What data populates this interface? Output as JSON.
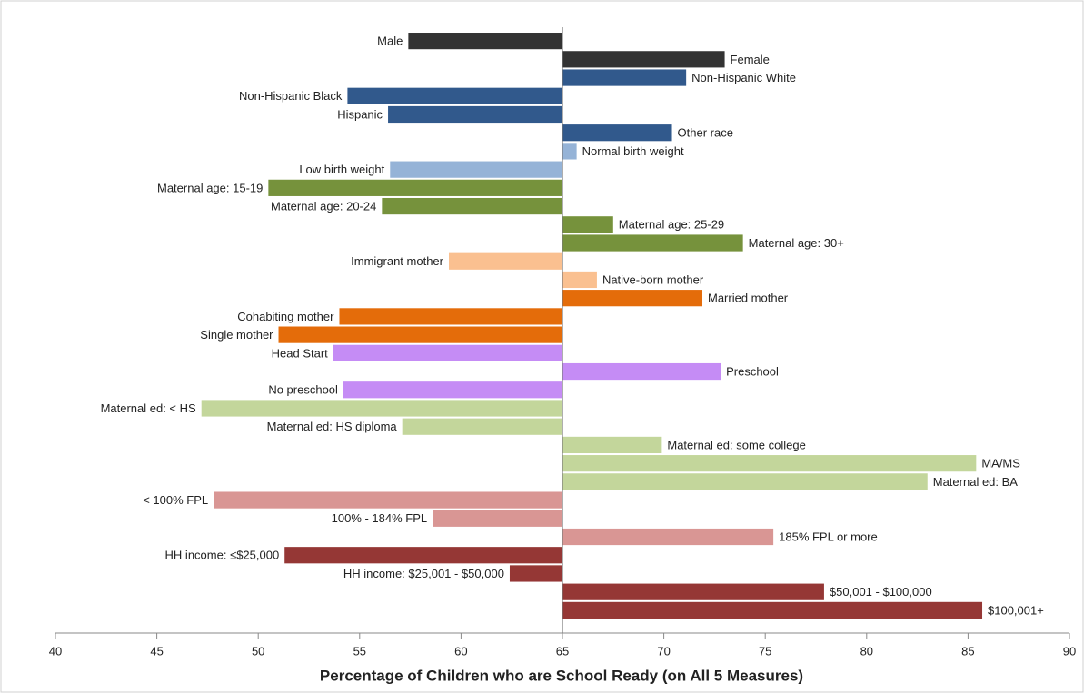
{
  "chart_data": {
    "type": "bar",
    "orientation": "horizontal",
    "xlabel": "Percentage of Children who are School Ready (on All 5 Measures)",
    "baseline": 65,
    "xlim": [
      40,
      90
    ],
    "xticks": [
      40,
      45,
      50,
      55,
      60,
      65,
      70,
      75,
      80,
      85,
      90
    ],
    "categories": [
      "Male",
      "Female",
      "Non-Hispanic White",
      "Non-Hispanic Black",
      "Hispanic",
      "Other race",
      "Normal birth weight",
      "Low birth weight",
      "Maternal age: 15-19",
      "Maternal age: 20-24",
      "Maternal age: 25-29",
      "Maternal age: 30+",
      "Immigrant mother",
      "Native-born mother",
      "Married mother",
      "Cohabiting mother",
      "Single mother",
      "Head Start",
      "Preschool",
      "No preschool",
      "Maternal ed: < HS",
      "Maternal ed: HS diploma",
      "Maternal ed: some college",
      "MA/MS",
      "Maternal ed: BA",
      "< 100% FPL",
      "100% - 184% FPL",
      "185% FPL or more",
      "HH income: ≤$25,000",
      "HH income: $25,001 - $50,000",
      "$50,001 - $100,000",
      "$100,001+"
    ],
    "values": [
      57.4,
      73.0,
      71.1,
      54.4,
      56.4,
      70.4,
      65.7,
      56.5,
      50.5,
      56.1,
      67.5,
      73.9,
      59.4,
      66.7,
      71.9,
      54.0,
      51.0,
      53.7,
      72.8,
      54.2,
      47.2,
      57.1,
      69.9,
      85.4,
      83.0,
      47.8,
      58.6,
      75.4,
      51.3,
      62.4,
      77.9,
      85.7
    ],
    "colors": [
      "#333333",
      "#333333",
      "#31598c",
      "#31598c",
      "#31598c",
      "#31598c",
      "#95b3d7",
      "#95b3d7",
      "#76923c",
      "#76923c",
      "#76923c",
      "#76923c",
      "#fac090",
      "#fac090",
      "#e46c0a",
      "#e46c0a",
      "#e46c0a",
      "#c58cf5",
      "#c58cf5",
      "#c58cf5",
      "#c3d69b",
      "#c3d69b",
      "#c3d69b",
      "#c3d69b",
      "#c3d69b",
      "#d99694",
      "#d99694",
      "#d99694",
      "#953735",
      "#953735",
      "#953735",
      "#953735"
    ]
  }
}
